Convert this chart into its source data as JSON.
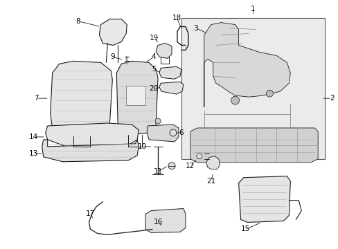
{
  "background_color": "#ffffff",
  "fig_width": 4.89,
  "fig_height": 3.6,
  "dpi": 100,
  "line_color": "#1a1a1a",
  "gray_fill": "#e8e8e8",
  "light_fill": "#f0f0f0",
  "box_fill": "#e0e0e0",
  "font_size": 7.5,
  "text_color": "#000000"
}
